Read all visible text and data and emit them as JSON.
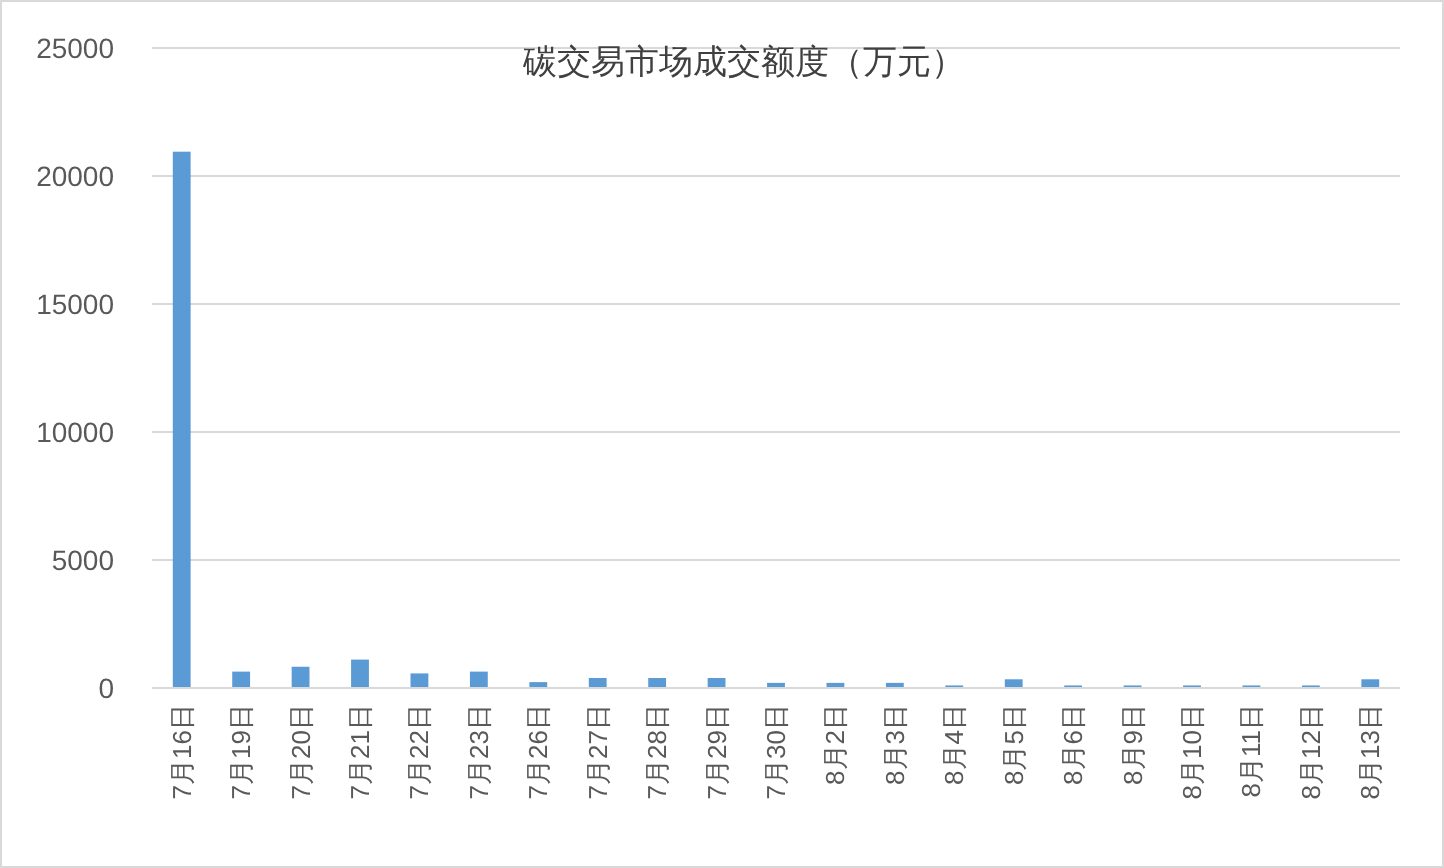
{
  "chart_data": {
    "type": "bar",
    "title": "碳交易市场成交额度（万元）",
    "categories": [
      "7月16日",
      "7月19日",
      "7月20日",
      "7月21日",
      "7月22日",
      "7月23日",
      "7月26日",
      "7月27日",
      "7月28日",
      "7月29日",
      "7月30日",
      "8月2日",
      "8月3日",
      "8月4日",
      "8月5日",
      "8月6日",
      "8月9日",
      "8月10日",
      "8月11日",
      "8月12日",
      "8月13日"
    ],
    "values": [
      20950,
      640,
      830,
      1110,
      570,
      640,
      230,
      390,
      390,
      390,
      200,
      200,
      200,
      100,
      340,
      100,
      100,
      100,
      100,
      100,
      340
    ],
    "color": "#5b9bd5",
    "ylim": [
      0,
      25000
    ],
    "yticks": [
      0,
      5000,
      10000,
      15000,
      20000,
      25000
    ],
    "grid": "y"
  }
}
